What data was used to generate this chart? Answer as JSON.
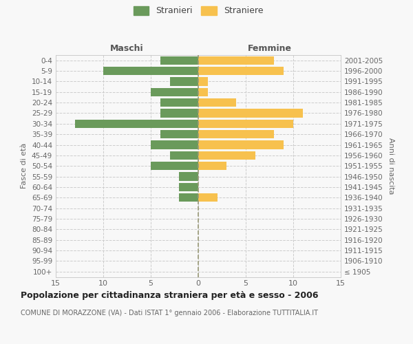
{
  "age_groups": [
    "100+",
    "95-99",
    "90-94",
    "85-89",
    "80-84",
    "75-79",
    "70-74",
    "65-69",
    "60-64",
    "55-59",
    "50-54",
    "45-49",
    "40-44",
    "35-39",
    "30-34",
    "25-29",
    "20-24",
    "15-19",
    "10-14",
    "5-9",
    "0-4"
  ],
  "birth_years": [
    "≤ 1905",
    "1906-1910",
    "1911-1915",
    "1916-1920",
    "1921-1925",
    "1926-1930",
    "1931-1935",
    "1936-1940",
    "1941-1945",
    "1946-1950",
    "1951-1955",
    "1956-1960",
    "1961-1965",
    "1966-1970",
    "1971-1975",
    "1976-1980",
    "1981-1985",
    "1986-1990",
    "1991-1995",
    "1996-2000",
    "2001-2005"
  ],
  "maschi": [
    0,
    0,
    0,
    0,
    0,
    0,
    0,
    2,
    2,
    2,
    5,
    3,
    5,
    4,
    13,
    4,
    4,
    5,
    3,
    10,
    4
  ],
  "femmine": [
    0,
    0,
    0,
    0,
    0,
    0,
    0,
    2,
    0,
    0,
    3,
    6,
    9,
    8,
    10,
    11,
    4,
    1,
    1,
    9,
    8
  ],
  "male_color": "#6a9a5b",
  "female_color": "#f7c14e",
  "background_color": "#f8f8f8",
  "grid_color": "#cccccc",
  "title": "Popolazione per cittadinanza straniera per età e sesso - 2006",
  "subtitle": "COMUNE DI MORAZZONE (VA) - Dati ISTAT 1° gennaio 2006 - Elaborazione TUTTITALIA.IT",
  "label_maschi": "Maschi",
  "label_femmine": "Femmine",
  "ylabel_left": "Fasce di età",
  "ylabel_right": "Anni di nascita",
  "legend_male": "Stranieri",
  "legend_female": "Straniere",
  "xlim": 15
}
